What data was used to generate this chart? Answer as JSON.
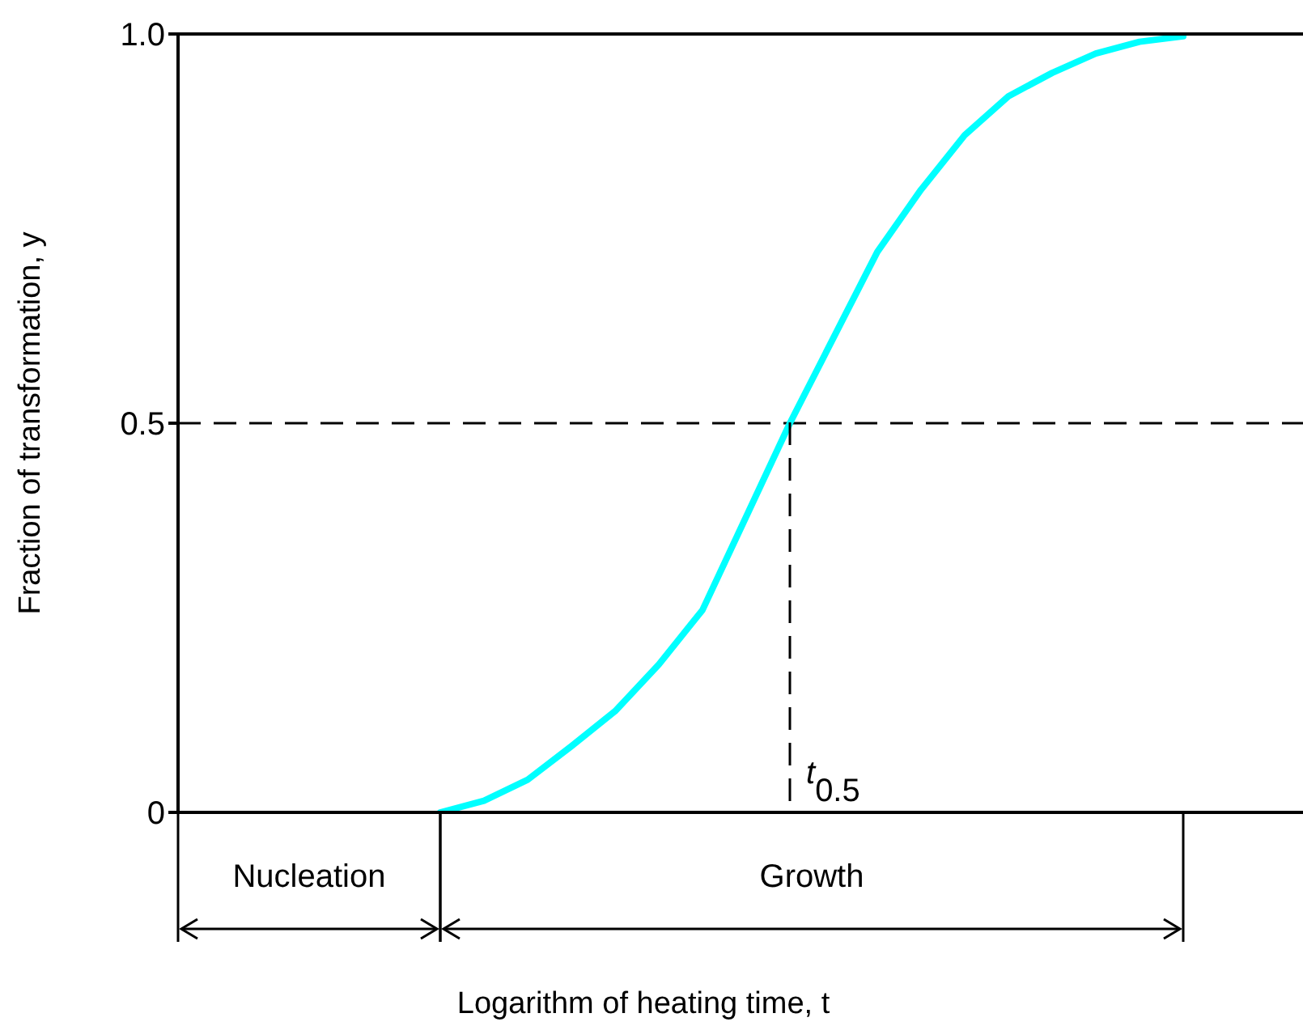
{
  "chart_data": {
    "type": "line",
    "ylabel": "Fraction of transformation, y",
    "tick_labels": "y",
    "ylim": [
      0,
      1
    ],
    "yticks": [
      0,
      0.5,
      {
        "value": 1,
        "label": "1.0"
      }
    ],
    "categories": [
      null,
      null,
      null,
      null,
      null,
      null,
      null,
      null,
      null,
      null,
      null,
      null,
      null,
      null,
      null,
      null,
      null,
      null,
      null,
      null,
      null,
      null,
      null,
      null,
      null,
      null
    ],
    "series": [
      {
        "color": "#00ffff",
        "values": [
          null,
          null,
          null,
          null,
          null,
          null,
          0,
          0.015,
          0.042,
          0.085,
          0.13,
          0.19,
          0.26,
          0.38,
          0.5,
          0.61,
          0.72,
          0.8,
          0.87,
          0.92,
          0.95,
          0.975,
          0.99,
          0.997,
          null,
          null
        ]
      }
    ],
    "ref_lines": [
      {
        "axis": "y",
        "value": 0.5,
        "line_style": "dashed",
        "color": "#000000"
      }
    ],
    "annotations": [
      "t$_{0.5}$",
      "Nucleation",
      "Growth",
      "Logarithm of heating time, t"
    ]
  }
}
